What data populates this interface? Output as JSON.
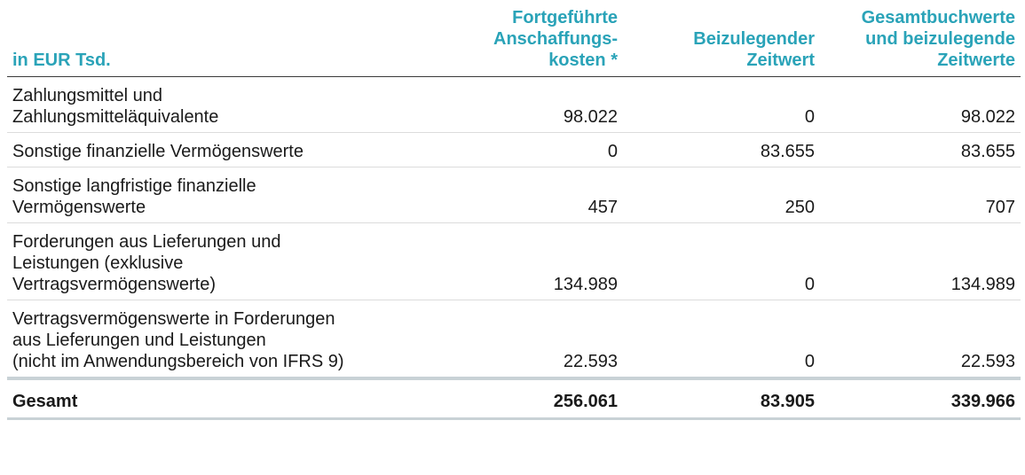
{
  "header": {
    "label": "in EUR Tsd.",
    "col1": "Fortgeführte\nAnschaffungs-\nkosten *",
    "col2": "Beizulegender\nZeitwert",
    "col3": "Gesamtbuchwerte\nund beizulegende\nZeitwerte"
  },
  "rows": [
    {
      "label": "Zahlungsmittel und\nZahlungsmitteläquivalente",
      "v1": "98.022",
      "v2": "0",
      "v3": "98.022"
    },
    {
      "label": "Sonstige finanzielle Vermögenswerte",
      "v1": "0",
      "v2": "83.655",
      "v3": "83.655"
    },
    {
      "label": "Sonstige langfristige finanzielle\nVermögenswerte",
      "v1": "457",
      "v2": "250",
      "v3": "707"
    },
    {
      "label": "Forderungen aus Lieferungen und\nLeistungen (exklusive\nVertragsvermögenswerte)",
      "v1": "134.989",
      "v2": "0",
      "v3": "134.989"
    },
    {
      "label": "Vertragsvermögenswerte in Forderungen\naus Lieferungen und Leistungen\n(nicht im Anwendungsbereich von IFRS 9)",
      "v1": "22.593",
      "v2": "0",
      "v3": "22.593"
    }
  ],
  "total": {
    "label": "Gesamt",
    "v1": "256.061",
    "v2": "83.905",
    "v3": "339.966"
  },
  "colors": {
    "header_text": "#2aa3b8",
    "total_rule": "#c9d2d6"
  }
}
